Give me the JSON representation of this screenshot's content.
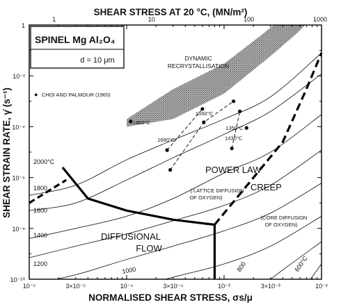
{
  "chart_data": {
    "type": "line",
    "title": "",
    "top_axis_label": "SHEAR STRESS AT 20 °C, (MN/m²)",
    "top_axis_ticks": [
      "1",
      "10",
      "100",
      "1000"
    ],
    "xlabel": "NORMALISED SHEAR STRESS, σs/μ",
    "x_scale": "log",
    "xlim": [
      1e-05,
      0.01
    ],
    "x_tick_labels": [
      "10⁻⁵",
      "3×10⁻⁵",
      "10⁻⁴",
      "3×10⁻⁴",
      "10⁻³",
      "3×10⁻³",
      "10⁻²"
    ],
    "x_tick_values": [
      1e-05,
      3e-05,
      0.0001,
      0.0003,
      0.001,
      0.003,
      0.01
    ],
    "ylabel": "SHEAR STRAIN RATE, γ̇ (s⁻¹)",
    "y_scale": "log",
    "ylim": [
      1e-10,
      1
    ],
    "y_tick_labels": [
      "1",
      "10⁻²",
      "10⁻⁴",
      "10⁻⁶",
      "10⁻⁸",
      "10⁻¹⁰"
    ],
    "y_tick_values": [
      1,
      0.01,
      0.0001,
      1e-06,
      1e-08,
      1e-10
    ],
    "material_box": {
      "title": "SPINEL  Mg Al₂O₄",
      "grain_size": "d = 10 μm"
    },
    "legend": {
      "marker": "●",
      "text": "CHOI AND PALMOUR (1965)"
    },
    "contours": [
      {
        "label": "2000°C",
        "points": [
          [
            1e-05,
            2e-07
          ],
          [
            3e-05,
            5e-07
          ],
          [
            0.0001,
            5e-06
          ],
          [
            0.0003,
            3e-05
          ],
          [
            0.001,
            0.0002
          ],
          [
            0.003,
            0.0015
          ],
          [
            0.01,
            0.08
          ]
        ]
      },
      {
        "label": "1800",
        "points": [
          [
            1e-05,
            5e-08
          ],
          [
            3e-05,
            1e-07
          ],
          [
            0.0001,
            8e-07
          ],
          [
            0.0003,
            6e-06
          ],
          [
            0.001,
            5e-05
          ],
          [
            0.003,
            0.0004
          ],
          [
            0.01,
            0.012
          ]
        ]
      },
      {
        "label": "1600",
        "points": [
          [
            1e-05,
            4e-09
          ],
          [
            3e-05,
            1e-08
          ],
          [
            0.0001,
            3e-08
          ],
          [
            0.0003,
            1.5e-07
          ],
          [
            0.001,
            1.5e-06
          ],
          [
            0.003,
            1e-05
          ],
          [
            0.01,
            0.0003
          ]
        ]
      },
      {
        "label": "1400",
        "points": [
          [
            1e-05,
            7e-10
          ],
          [
            3e-05,
            2e-09
          ],
          [
            0.0001,
            6e-09
          ],
          [
            0.0003,
            2e-08
          ],
          [
            0.001,
            8e-08
          ],
          [
            0.003,
            5e-07
          ],
          [
            0.01,
            1.2e-05
          ]
        ]
      },
      {
        "label": "1200",
        "points": [
          [
            1e-05,
            6e-11
          ],
          [
            3e-05,
            1.5e-10
          ],
          [
            0.0001,
            6e-10
          ],
          [
            0.0003,
            2e-09
          ],
          [
            0.001,
            8e-09
          ],
          [
            0.003,
            4e-08
          ],
          [
            0.01,
            6e-07
          ]
        ]
      },
      {
        "label": "1000",
        "points": [
          [
            2e-05,
            1e-11
          ],
          [
            0.0001,
            4e-11
          ],
          [
            0.0003,
            1.2e-10
          ],
          [
            0.001,
            4e-10
          ],
          [
            0.003,
            2e-09
          ],
          [
            0.01,
            3e-08
          ]
        ]
      },
      {
        "label": "800",
        "points": [
          [
            0.0015,
            1e-11
          ],
          [
            0.003,
            1e-10
          ],
          [
            0.01,
            3e-09
          ]
        ]
      },
      {
        "label": "600°C",
        "points": [
          [
            0.005,
            1e-11
          ],
          [
            0.01,
            4e-10
          ]
        ]
      }
    ],
    "boundaries": {
      "solid": [
        [
          2.2e-05,
          2.5e-06
        ],
        [
          4e-05,
          1.5e-07
        ],
        [
          0.0001,
          5e-08
        ],
        [
          0.0003,
          2.2e-08
        ],
        [
          0.00068,
          1.5e-08
        ],
        [
          0.0008,
          1.4e-08
        ],
        [
          0.0008,
          1e-10
        ]
      ],
      "dashed_left": [
        [
          1e-05,
          1e-07
        ],
        [
          2.4e-05,
          8e-07
        ]
      ],
      "dashed_right": [
        [
          0.0008,
          1.4e-08
        ],
        [
          0.0018,
          6e-07
        ],
        [
          0.004,
          2.5e-05
        ],
        [
          0.007,
          0.003
        ],
        [
          0.01,
          0.08
        ]
      ]
    },
    "shaded_band_upper": [
      [
        0.0001,
        0.0002
      ],
      [
        0.0003,
        0.003
      ],
      [
        0.001,
        0.03
      ],
      [
        0.0026,
        0.5
      ],
      [
        0.004,
        2
      ]
    ],
    "shaded_band_lower": [
      [
        0.0001,
        0.0001
      ],
      [
        0.0003,
        0.0002
      ],
      [
        0.001,
        0.002
      ],
      [
        0.003,
        0.06
      ],
      [
        0.006,
        0.6
      ],
      [
        0.008,
        2
      ]
    ],
    "experimental_points": [
      {
        "label": "1800°C",
        "x": 0.00011,
        "y": 0.00016
      },
      {
        "label": "1690°C",
        "x": 0.00026,
        "y": 1.2e-05
      },
      {
        "label": "",
        "x": 0.0006,
        "y": 0.0005
      },
      {
        "label": "",
        "x": 0.00028,
        "y": 2e-06
      },
      {
        "label": "1550°C",
        "x": 0.00062,
        "y": 0.00015
      },
      {
        "label": "",
        "x": 0.00125,
        "y": 0.001
      },
      {
        "label": "1430°C",
        "x": 0.0012,
        "y": 1.4e-05
      },
      {
        "label": "",
        "x": 0.00145,
        "y": 0.0004
      },
      {
        "label": "1350°C",
        "x": 0.0017,
        "y": 9e-05
      }
    ],
    "point_lines": [
      [
        [
          0.00026,
          1.2e-05
        ],
        [
          0.0006,
          0.0005
        ]
      ],
      [
        [
          0.00028,
          2e-06
        ],
        [
          0.00062,
          0.00015
        ],
        [
          0.00125,
          0.001
        ]
      ],
      [
        [
          0.0012,
          1.4e-05
        ],
        [
          0.00145,
          0.0004
        ]
      ]
    ],
    "annotations": {
      "dynamic_recrystallisation": [
        "DYNAMIC",
        "RECRYSTALLISATION"
      ],
      "power_law": "POWER LAW",
      "creep": "CREEP",
      "lattice_diffusion": [
        "( LATTICE DIFFUSION",
        "OF OXYGEN)"
      ],
      "core_diffusion": [
        "(CORE DIFFUSION",
        "OF OXYGEN)"
      ],
      "diffusional": "DIFFUSIONAL",
      "flow": "FLOW"
    }
  }
}
